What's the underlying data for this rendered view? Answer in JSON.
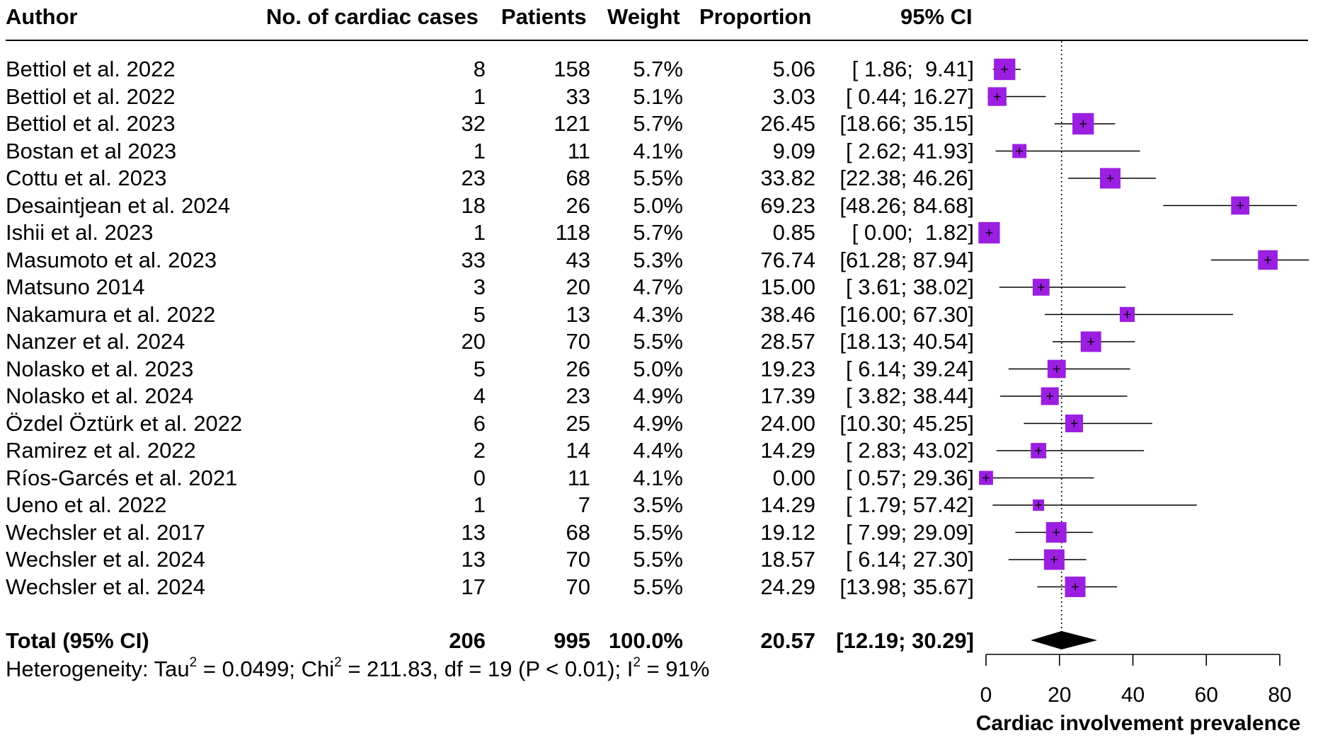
{
  "headers": {
    "author": "Author",
    "cases": "No. of cardiac cases",
    "patients": "Patients",
    "weight": "Weight",
    "proportion": "Proportion",
    "ci": "95% CI"
  },
  "rows": [
    {
      "author": "Bettiol et al. 2022",
      "cases": "8",
      "patients": "158",
      "weight": "5.7%",
      "proportion": "5.06",
      "ci": "[ 1.86;  9.41]"
    },
    {
      "author": "Bettiol et al. 2022",
      "cases": "1",
      "patients": "33",
      "weight": "5.1%",
      "proportion": "3.03",
      "ci": "[ 0.44; 16.27]"
    },
    {
      "author": "Bettiol et al. 2023",
      "cases": "32",
      "patients": "121",
      "weight": "5.7%",
      "proportion": "26.45",
      "ci": "[18.66; 35.15]"
    },
    {
      "author": "Bostan et al 2023",
      "cases": "1",
      "patients": "11",
      "weight": "4.1%",
      "proportion": "9.09",
      "ci": "[ 2.62; 41.93]"
    },
    {
      "author": "Cottu et al. 2023",
      "cases": "23",
      "patients": "68",
      "weight": "5.5%",
      "proportion": "33.82",
      "ci": "[22.38; 46.26]"
    },
    {
      "author": "Desaintjean et al. 2024",
      "cases": "18",
      "patients": "26",
      "weight": "5.0%",
      "proportion": "69.23",
      "ci": "[48.26; 84.68]"
    },
    {
      "author": "Ishii et al. 2023",
      "cases": "1",
      "patients": "118",
      "weight": "5.7%",
      "proportion": "0.85",
      "ci": "[ 0.00;  1.82]"
    },
    {
      "author": "Masumoto et al. 2023",
      "cases": "33",
      "patients": "43",
      "weight": "5.3%",
      "proportion": "76.74",
      "ci": "[61.28; 87.94]"
    },
    {
      "author": "Matsuno 2014",
      "cases": "3",
      "patients": "20",
      "weight": "4.7%",
      "proportion": "15.00",
      "ci": "[ 3.61; 38.02]"
    },
    {
      "author": "Nakamura et al. 2022",
      "cases": "5",
      "patients": "13",
      "weight": "4.3%",
      "proportion": "38.46",
      "ci": "[16.00; 67.30]"
    },
    {
      "author": "Nanzer et al. 2024",
      "cases": "20",
      "patients": "70",
      "weight": "5.5%",
      "proportion": "28.57",
      "ci": "[18.13; 40.54]"
    },
    {
      "author": "Nolasko et al. 2023",
      "cases": "5",
      "patients": "26",
      "weight": "5.0%",
      "proportion": "19.23",
      "ci": "[ 6.14; 39.24]"
    },
    {
      "author": "Nolasko et al. 2024",
      "cases": "4",
      "patients": "23",
      "weight": "4.9%",
      "proportion": "17.39",
      "ci": "[ 3.82; 38.44]"
    },
    {
      "author": "Özdel Öztürk et al. 2022",
      "cases": "6",
      "patients": "25",
      "weight": "4.9%",
      "proportion": "24.00",
      "ci": "[10.30; 45.25]"
    },
    {
      "author": "Ramirez et al. 2022",
      "cases": "2",
      "patients": "14",
      "weight": "4.4%",
      "proportion": "14.29",
      "ci": "[ 2.83; 43.02]"
    },
    {
      "author": "Ríos-Garcés et al. 2021",
      "cases": "0",
      "patients": "11",
      "weight": "4.1%",
      "proportion": "0.00",
      "ci": "[ 0.57; 29.36]"
    },
    {
      "author": "Ueno et al. 2022",
      "cases": "1",
      "patients": "7",
      "weight": "3.5%",
      "proportion": "14.29",
      "ci": "[ 1.79; 57.42]"
    },
    {
      "author": "Wechsler et al. 2017",
      "cases": "13",
      "patients": "68",
      "weight": "5.5%",
      "proportion": "19.12",
      "ci": "[ 7.99; 29.09]"
    },
    {
      "author": "Wechsler et al. 2024",
      "cases": "13",
      "patients": "70",
      "weight": "5.5%",
      "proportion": "18.57",
      "ci": "[ 6.14; 27.30]"
    },
    {
      "author": "Wechsler et al. 2024",
      "cases": "17",
      "patients": "70",
      "weight": "5.5%",
      "proportion": "24.29",
      "ci": "[13.98; 35.67]"
    }
  ],
  "total": {
    "author": "Total (95% CI)",
    "cases": "206",
    "patients": "995",
    "weight": "100.0%",
    "proportion": "20.57",
    "ci": "[12.19; 30.29]"
  },
  "heterogeneity": {
    "tau_label": "Heterogeneity: Tau",
    "tau_sup": "2",
    "tau_value": " = 0.0499; Chi",
    "chi_sup": "2",
    "chi_value": " = 211.83, df = 19 (P < 0.01); I",
    "i_sup": "2",
    "i_value": " = 91%"
  },
  "colors": {
    "box": "#9b1fe0",
    "line": "#000000",
    "diamond": "#000000"
  },
  "chart_data": {
    "type": "forest",
    "title": "",
    "xlabel": "Cardiac involvement prevalence",
    "xlim": [
      0,
      80
    ],
    "ticks": [
      0,
      20,
      40,
      60,
      80
    ],
    "tick_labels": [
      "0",
      "20",
      "40",
      "60",
      "80"
    ],
    "reference_line": 20.57,
    "studies": [
      {
        "est": 5.06,
        "lo": 1.86,
        "hi": 9.41,
        "weight": 5.7
      },
      {
        "est": 3.03,
        "lo": 0.44,
        "hi": 16.27,
        "weight": 5.1
      },
      {
        "est": 26.45,
        "lo": 18.66,
        "hi": 35.15,
        "weight": 5.7
      },
      {
        "est": 9.09,
        "lo": 2.62,
        "hi": 41.93,
        "weight": 4.1
      },
      {
        "est": 33.82,
        "lo": 22.38,
        "hi": 46.26,
        "weight": 5.5
      },
      {
        "est": 69.23,
        "lo": 48.26,
        "hi": 84.68,
        "weight": 5.0
      },
      {
        "est": 0.85,
        "lo": 0.0,
        "hi": 1.82,
        "weight": 5.7
      },
      {
        "est": 76.74,
        "lo": 61.28,
        "hi": 87.94,
        "weight": 5.3
      },
      {
        "est": 15.0,
        "lo": 3.61,
        "hi": 38.02,
        "weight": 4.7
      },
      {
        "est": 38.46,
        "lo": 16.0,
        "hi": 67.3,
        "weight": 4.3
      },
      {
        "est": 28.57,
        "lo": 18.13,
        "hi": 40.54,
        "weight": 5.5
      },
      {
        "est": 19.23,
        "lo": 6.14,
        "hi": 39.24,
        "weight": 5.0
      },
      {
        "est": 17.39,
        "lo": 3.82,
        "hi": 38.44,
        "weight": 4.9
      },
      {
        "est": 24.0,
        "lo": 10.3,
        "hi": 45.25,
        "weight": 4.9
      },
      {
        "est": 14.29,
        "lo": 2.83,
        "hi": 43.02,
        "weight": 4.4
      },
      {
        "est": 0.0,
        "lo": 0.57,
        "hi": 29.36,
        "weight": 4.1
      },
      {
        "est": 14.29,
        "lo": 1.79,
        "hi": 57.42,
        "weight": 3.5
      },
      {
        "est": 19.12,
        "lo": 7.99,
        "hi": 29.09,
        "weight": 5.5
      },
      {
        "est": 18.57,
        "lo": 6.14,
        "hi": 27.3,
        "weight": 5.5
      },
      {
        "est": 24.29,
        "lo": 13.98,
        "hi": 35.67,
        "weight": 5.5
      }
    ],
    "pooled": {
      "est": 20.57,
      "lo": 12.19,
      "hi": 30.29
    }
  }
}
